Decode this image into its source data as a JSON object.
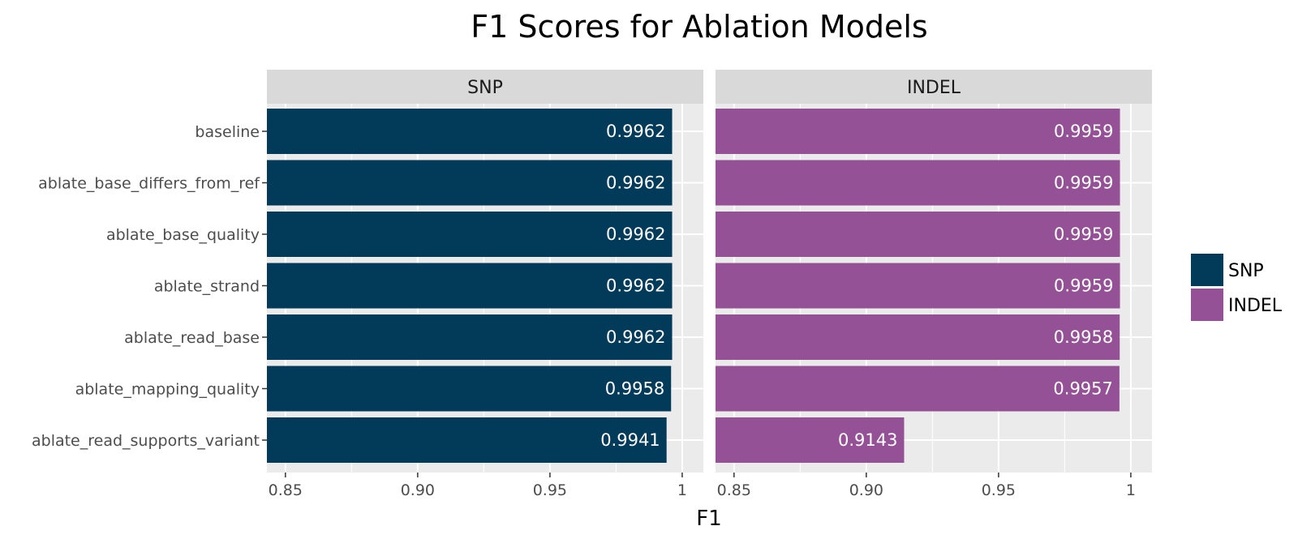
{
  "chart_data": {
    "type": "bar",
    "orientation": "horizontal",
    "title": "F1 Scores for Ablation Models",
    "xlabel": "F1",
    "ylabel": "",
    "xlim": [
      0.843,
      1.008
    ],
    "xticks": [
      0.85,
      0.9,
      0.95,
      1.0
    ],
    "xtick_labels": [
      "0.85",
      "0.90",
      "0.95",
      "1"
    ],
    "grid": true,
    "legend_position": "right",
    "categories": [
      "baseline",
      "ablate_base_differs_from_ref",
      "ablate_base_quality",
      "ablate_strand",
      "ablate_read_base",
      "ablate_mapping_quality",
      "ablate_read_supports_variant"
    ],
    "series": [
      {
        "name": "SNP",
        "color": "#023a5a",
        "values": [
          0.9962,
          0.9962,
          0.9962,
          0.9962,
          0.9962,
          0.9958,
          0.9941
        ],
        "labels": [
          "0.9962",
          "0.9962",
          "0.9962",
          "0.9962",
          "0.9962",
          "0.9958",
          "0.9941"
        ]
      },
      {
        "name": "INDEL",
        "color": "#955196",
        "values": [
          0.9959,
          0.9959,
          0.9959,
          0.9959,
          0.9958,
          0.9957,
          0.9143
        ],
        "labels": [
          "0.9959",
          "0.9959",
          "0.9959",
          "0.9959",
          "0.9958",
          "0.9957",
          "0.9143"
        ]
      }
    ],
    "colors": {
      "panel_background": "#ebebeb",
      "strip_background": "#d9d9d9",
      "gridline": "#ffffff"
    }
  }
}
